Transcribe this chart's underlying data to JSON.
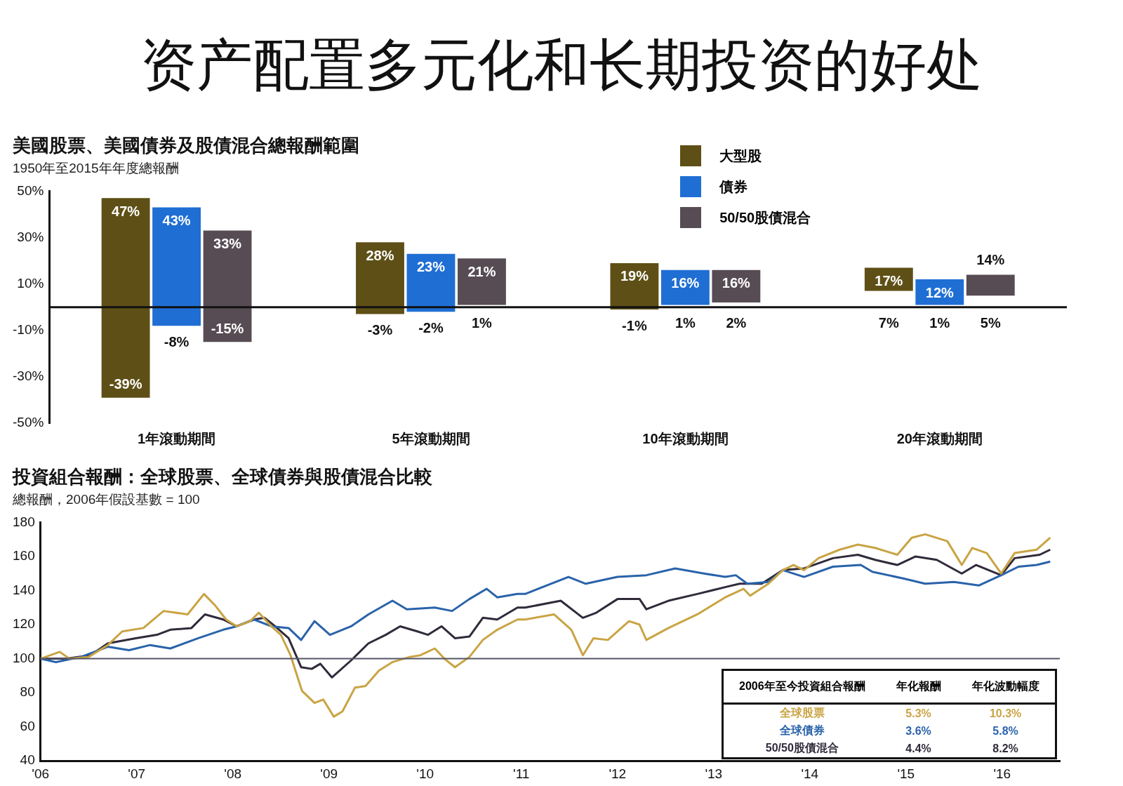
{
  "chart_data": [
    {
      "type": "other",
      "title": "资产配置多元化和长期投资的好处"
    },
    {
      "type": "bar",
      "title": "美國股票、美國債券及股債混合總報酬範圍",
      "subtitle": "1950年至2015年年度總報酬",
      "categories": [
        "1年滾動期間",
        "5年滾動期間",
        "10年滾動期間",
        "20年滾動期間"
      ],
      "series": [
        {
          "name": "大型股",
          "color": "#5e4f16",
          "base": [
            -39,
            -3,
            -1,
            7
          ],
          "values": [
            86,
            31,
            20,
            10
          ]
        },
        {
          "name": "債券",
          "color": "#1f6ed4",
          "base": [
            -8,
            -2,
            1,
            1
          ],
          "values": [
            51,
            25,
            15,
            11
          ]
        },
        {
          "name": "50/50股債混合",
          "color": "#574c53",
          "base": [
            -15,
            1,
            2,
            5
          ],
          "values": [
            48,
            20,
            14,
            9
          ]
        }
      ],
      "ylim": [
        -50,
        50
      ],
      "yticks": [
        {
          "value": -50,
          "label": "-50%"
        },
        {
          "value": -30,
          "label": "-30%"
        },
        {
          "value": -10,
          "label": "-10%"
        },
        {
          "value": 10,
          "label": "10%"
        },
        {
          "value": 30,
          "label": "30%"
        },
        {
          "value": 50,
          "label": "50%"
        }
      ],
      "grid": false,
      "legend": "top right",
      "ref_lines": [
        {
          "axis": "y",
          "value": 0,
          "color": "#111111"
        }
      ],
      "annotations": [
        "47%",
        "-39%",
        "43%",
        "-8%",
        "33%",
        "-15%",
        "28%",
        "-3%",
        "23%",
        "-2%",
        "21%",
        "1%",
        "19%",
        "-1%",
        "16%",
        "1%",
        "16%",
        "2%",
        "17%",
        "7%",
        "12%",
        "1%",
        "14%",
        "5%"
      ]
    },
    {
      "type": "line",
      "title": "投資組合報酬：全球股票、全球債券與股債混合比較",
      "subtitle": "總報酬，2006年假設基數 = 100",
      "series": [
        {
          "name": "全球股票",
          "color": "#c9a444",
          "x": [
            2006.0,
            2006.2,
            2006.3,
            2006.5,
            2006.7,
            2006.85,
            2007.07,
            2007.28,
            2007.53,
            2007.7,
            2007.82,
            2007.93,
            2008.04,
            2008.18,
            2008.27,
            2008.4,
            2008.5,
            2008.6,
            2008.72,
            2008.85,
            2008.94,
            2009.05,
            2009.14,
            2009.27,
            2009.38,
            2009.52,
            2009.66,
            2009.84,
            2009.95,
            2010.1,
            2010.2,
            2010.31,
            2010.46,
            2010.6,
            2010.75,
            2010.96,
            2011.04,
            2011.34,
            2011.52,
            2011.64,
            2011.75,
            2011.9,
            2012.12,
            2012.23,
            2012.3,
            2012.53,
            2012.83,
            2013.12,
            2013.31,
            2013.38,
            2013.57,
            2013.72,
            2013.83,
            2013.94,
            2014.09,
            2014.31,
            2014.5,
            2014.68,
            2014.91,
            2015.06,
            2015.2,
            2015.43,
            2015.58,
            2015.69,
            2015.84,
            2015.99,
            2016.13,
            2016.36,
            2016.5
          ],
          "values": [
            100,
            104,
            100,
            101,
            108,
            116,
            118,
            128,
            126,
            138,
            131,
            123,
            119,
            122,
            127,
            119,
            114,
            102,
            81,
            74,
            76,
            66,
            69,
            83,
            84,
            93,
            98,
            101,
            102,
            106,
            100,
            95,
            101,
            111,
            117,
            123,
            123,
            126,
            117,
            102,
            112,
            111,
            122,
            120,
            111,
            118,
            126,
            136,
            141,
            137,
            144,
            152,
            155,
            152,
            159,
            164,
            167,
            165,
            161,
            171,
            173,
            169,
            155,
            165,
            162,
            150,
            162,
            164,
            171
          ]
        },
        {
          "name": "全球債券",
          "color": "#2a63aa",
          "x": [
            2006.0,
            2006.16,
            2006.42,
            2006.7,
            2006.92,
            2007.14,
            2007.35,
            2007.64,
            2007.9,
            2008.04,
            2008.22,
            2008.4,
            2008.58,
            2008.71,
            2008.85,
            2009.01,
            2009.23,
            2009.41,
            2009.66,
            2009.81,
            2010.1,
            2010.28,
            2010.46,
            2010.64,
            2010.75,
            2010.96,
            2011.04,
            2011.49,
            2011.67,
            2012.0,
            2012.3,
            2012.6,
            2012.9,
            2013.12,
            2013.23,
            2013.35,
            2013.57,
            2013.72,
            2013.94,
            2014.24,
            2014.53,
            2014.65,
            2014.98,
            2015.2,
            2015.5,
            2015.76,
            2015.99,
            2016.17,
            2016.36,
            2016.5
          ],
          "values": [
            100,
            98,
            101,
            107,
            105,
            108,
            106,
            112,
            117,
            119,
            123,
            119,
            118,
            111,
            122,
            114,
            119,
            126,
            134,
            129,
            130,
            128,
            135,
            141,
            136,
            138,
            138,
            148,
            144,
            148,
            149,
            153,
            150,
            148,
            149,
            144,
            145,
            152,
            148,
            154,
            155,
            151,
            147,
            144,
            145,
            143,
            149,
            154,
            155,
            157
          ]
        },
        {
          "name": "50/50股債混合",
          "color": "#302a3a",
          "x": [
            2006.0,
            2006.27,
            2006.52,
            2006.7,
            2006.99,
            2007.21,
            2007.35,
            2007.57,
            2007.71,
            2007.9,
            2008.04,
            2008.22,
            2008.33,
            2008.44,
            2008.58,
            2008.71,
            2008.82,
            2008.91,
            2009.03,
            2009.23,
            2009.41,
            2009.59,
            2009.74,
            2009.92,
            2010.03,
            2010.17,
            2010.31,
            2010.46,
            2010.6,
            2010.75,
            2010.96,
            2011.04,
            2011.41,
            2011.64,
            2011.78,
            2012.0,
            2012.23,
            2012.3,
            2012.53,
            2012.83,
            2013.12,
            2013.27,
            2013.5,
            2013.72,
            2013.94,
            2014.24,
            2014.5,
            2014.68,
            2014.91,
            2015.1,
            2015.32,
            2015.58,
            2015.73,
            2015.99,
            2016.13,
            2016.39,
            2016.5
          ],
          "values": [
            100,
            100,
            102,
            109,
            112,
            114,
            117,
            118,
            126,
            123,
            119,
            123,
            124,
            119,
            112,
            95,
            94,
            97,
            89,
            99,
            109,
            114,
            119,
            116,
            114,
            119,
            112,
            113,
            124,
            123,
            130,
            130,
            134,
            124,
            127,
            135,
            135,
            129,
            134,
            138,
            142,
            144,
            144,
            152,
            153,
            159,
            161,
            158,
            155,
            160,
            158,
            150,
            155,
            149,
            159,
            161,
            164
          ]
        }
      ],
      "xlim": [
        2006,
        2016.6
      ],
      "xticks": [
        {
          "value": 2006,
          "label": "'06"
        },
        {
          "value": 2007,
          "label": "'07"
        },
        {
          "value": 2008,
          "label": "'08"
        },
        {
          "value": 2009,
          "label": "'09"
        },
        {
          "value": 2010,
          "label": "'10"
        },
        {
          "value": 2011,
          "label": "'11"
        },
        {
          "value": 2012,
          "label": "'12"
        },
        {
          "value": 2013,
          "label": "'13"
        },
        {
          "value": 2014,
          "label": "'14"
        },
        {
          "value": 2015,
          "label": "'15"
        },
        {
          "value": 2016,
          "label": "'16"
        }
      ],
      "ylim": [
        40,
        180
      ],
      "yticks": [
        40,
        60,
        80,
        100,
        120,
        140,
        160,
        180
      ],
      "grid": false,
      "legend": "bottom right",
      "marker": "none",
      "line_style": "solid",
      "ref_lines": [
        {
          "axis": "y",
          "value": 100,
          "color": "#555566"
        }
      ],
      "annotations": [
        "2006年至今投資組合報酬",
        "年化報酬",
        "年化波動幅度",
        "5.3%",
        "10.3%",
        "3.6%",
        "5.8%",
        "4.4%",
        "8.2%"
      ]
    }
  ]
}
